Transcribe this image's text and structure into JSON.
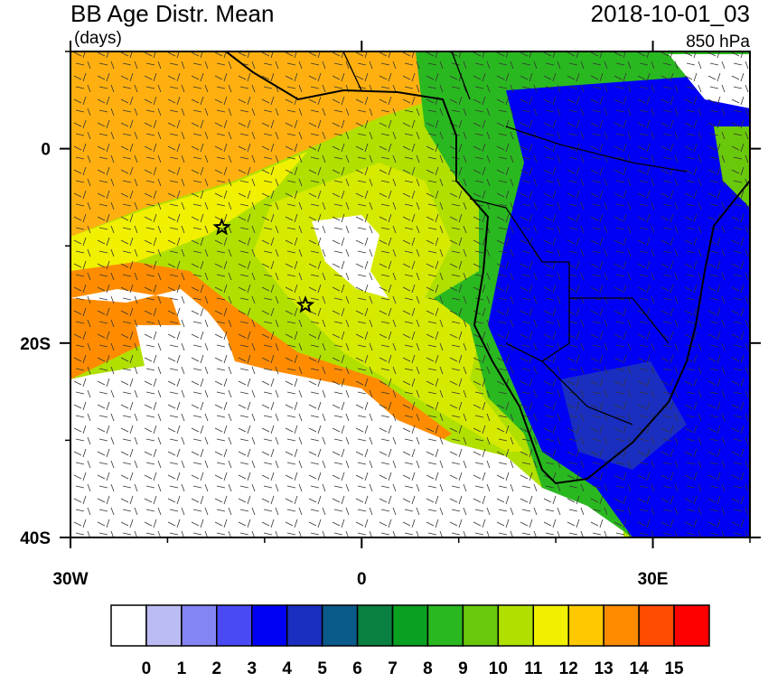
{
  "map": {
    "title": "BB Age Distr. Mean",
    "units": "(days)",
    "date": "2018-10-01_03",
    "level": "850 hPa",
    "xlim": [
      -30,
      40
    ],
    "ylim": [
      -40,
      10
    ],
    "xticks": [
      {
        "value": -30,
        "label": "30W"
      },
      0,
      {
        "value": 30,
        "label": "30E"
      }
    ],
    "yticks": [
      0,
      {
        "value": -20,
        "label": "20S"
      },
      {
        "value": -40,
        "label": "40S"
      }
    ],
    "xminor": [
      -20,
      -10,
      10,
      20,
      40
    ],
    "yminor": [
      10,
      -10,
      -30
    ],
    "markers": [
      {
        "lon": -14.4,
        "lat": -8.1
      },
      {
        "lon": -5.8,
        "lat": -16.1
      }
    ],
    "colorbar": {
      "levels": [
        0,
        1,
        2,
        3,
        4,
        5,
        6,
        7,
        8,
        9,
        10,
        11,
        12,
        13,
        14,
        15
      ],
      "colors": [
        "#ffffff",
        "#bcbcf5",
        "#8484f5",
        "#4a4af5",
        "#0000f5",
        "#1a2fc0",
        "#0a5a8a",
        "#0a8040",
        "#0aa020",
        "#2ab820",
        "#6ac80a",
        "#b0e000",
        "#f0f000",
        "#ffc800",
        "#ff8c00",
        "#ff4a00",
        "#ff0000"
      ]
    }
  }
}
